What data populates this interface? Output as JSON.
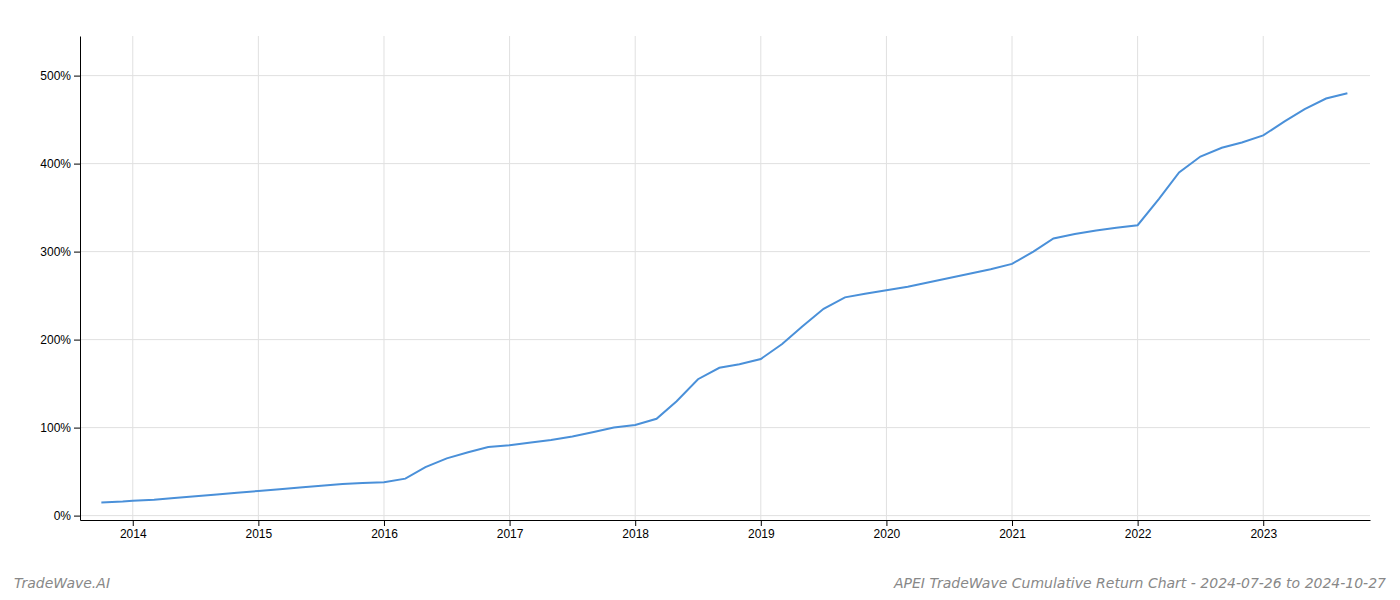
{
  "chart_data": {
    "type": "line",
    "title": "APEI TradeWave Cumulative Return Chart - 2024-07-26 to 2024-10-27",
    "annotations": [
      "TradeWave.AI"
    ],
    "color": "#4a90d9",
    "grid": true,
    "x": [
      2013.75,
      2013.92,
      2014.0,
      2014.17,
      2014.33,
      2014.5,
      2014.67,
      2014.83,
      2015.0,
      2015.17,
      2015.33,
      2015.5,
      2015.67,
      2015.83,
      2016.0,
      2016.17,
      2016.33,
      2016.5,
      2016.67,
      2016.83,
      2017.0,
      2017.17,
      2017.33,
      2017.5,
      2017.67,
      2017.83,
      2018.0,
      2018.17,
      2018.33,
      2018.5,
      2018.67,
      2018.83,
      2019.0,
      2019.17,
      2019.33,
      2019.5,
      2019.67,
      2019.83,
      2020.0,
      2020.17,
      2020.33,
      2020.5,
      2020.67,
      2020.83,
      2021.0,
      2021.17,
      2021.33,
      2021.5,
      2021.67,
      2021.83,
      2022.0,
      2022.17,
      2022.33,
      2022.5,
      2022.67,
      2022.83,
      2023.0,
      2023.17,
      2023.33,
      2023.5,
      2023.67
    ],
    "values": [
      15,
      16,
      17,
      18,
      20,
      22,
      24,
      26,
      28,
      30,
      32,
      34,
      36,
      37,
      38,
      42,
      55,
      65,
      72,
      78,
      80,
      83,
      86,
      90,
      95,
      100,
      103,
      110,
      130,
      155,
      168,
      172,
      178,
      195,
      215,
      235,
      248,
      252,
      256,
      260,
      265,
      270,
      275,
      280,
      286,
      300,
      315,
      320,
      324,
      327,
      330,
      360,
      390,
      408,
      418,
      424,
      432,
      448,
      462,
      474,
      480
    ],
    "xlim": [
      2013.58,
      2023.85
    ],
    "ylim": [
      -5,
      545
    ],
    "xticks": [
      2014,
      2015,
      2016,
      2017,
      2018,
      2019,
      2020,
      2021,
      2022,
      2023
    ],
    "yticks": [
      {
        "value": 0,
        "label": "0%"
      },
      {
        "value": 100,
        "label": "100%"
      },
      {
        "value": 200,
        "label": "200%"
      },
      {
        "value": 300,
        "label": "300%"
      },
      {
        "value": 400,
        "label": "400%"
      },
      {
        "value": 500,
        "label": "500%"
      }
    ]
  }
}
